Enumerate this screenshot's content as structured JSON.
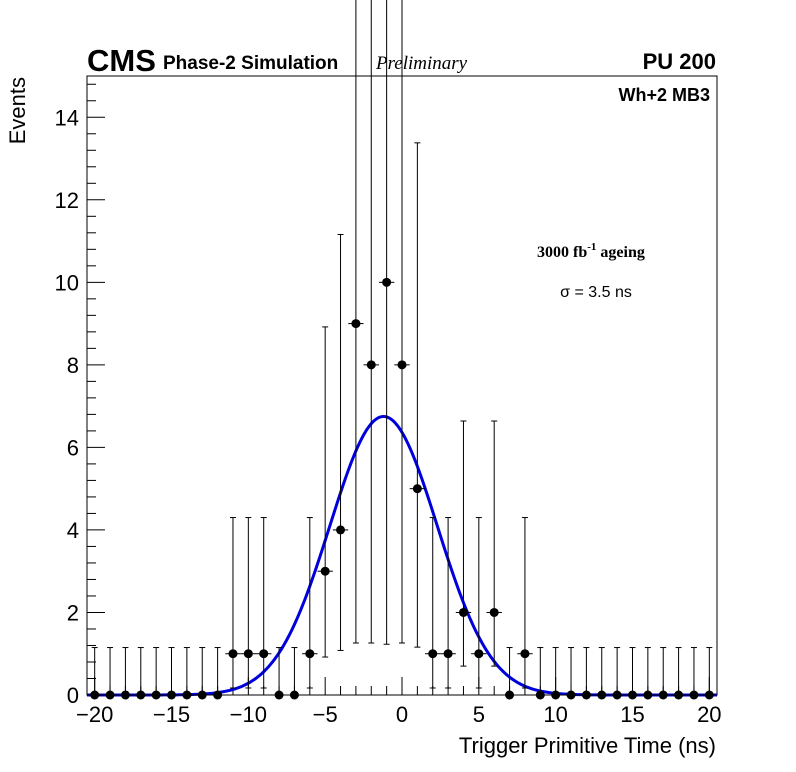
{
  "header": {
    "experiment": "CMS",
    "subtitle": "Phase-2 Simulation",
    "status": "Preliminary",
    "pileup": "PU 200"
  },
  "labels": {
    "chamber": "Wh+2 MB3",
    "ageing_value": "3000 fb",
    "ageing_exp": "-1",
    "ageing_word": "ageing",
    "sigma": "σ = 3.5 ns"
  },
  "chart_data": {
    "type": "scatter",
    "title": "",
    "xlabel": "Trigger Primitive Time (ns)",
    "ylabel": "Events",
    "xlim": [
      -20.5,
      20.5
    ],
    "ylim": [
      0,
      15
    ],
    "x_ticks": [
      -20,
      -15,
      -10,
      -5,
      0,
      5,
      10,
      15,
      20
    ],
    "x_tick_labels": [
      "−20",
      "−15",
      "−10",
      "−5",
      "0",
      "5",
      "10",
      "15",
      "20"
    ],
    "y_ticks": [
      0,
      2,
      4,
      6,
      8,
      10,
      12,
      14
    ],
    "y_tick_labels": [
      "0",
      "2",
      "4",
      "6",
      "8",
      "10",
      "12",
      "14"
    ],
    "series": [
      {
        "name": "Data (simulation)",
        "color": "#000000",
        "x": [
          -20,
          -19,
          -18,
          -17,
          -16,
          -15,
          -14,
          -13,
          -12,
          -11,
          -10,
          -9,
          -8,
          -7,
          -6,
          -5,
          -4,
          -3,
          -2,
          -1,
          0,
          1,
          2,
          3,
          4,
          5,
          6,
          7,
          8,
          9,
          10,
          11,
          12,
          13,
          14,
          15,
          16,
          17,
          18,
          19,
          20
        ],
        "y": [
          0,
          0,
          0,
          0,
          0,
          0,
          0,
          0,
          0,
          1,
          1,
          1,
          0,
          0,
          1,
          3,
          4,
          9,
          8,
          10,
          8,
          5,
          1,
          1,
          2,
          1,
          2,
          0,
          1,
          0,
          0,
          0,
          0,
          0,
          0,
          0,
          0,
          0,
          0,
          0,
          0
        ],
        "x_error": 0.5,
        "y_error_note": "Poisson (Garwood 68% intervals)"
      },
      {
        "name": "Gaussian fit",
        "type": "line",
        "color": "#0000dd",
        "amplitude": 6.75,
        "mean": -1.2,
        "sigma": 3.5
      }
    ]
  }
}
